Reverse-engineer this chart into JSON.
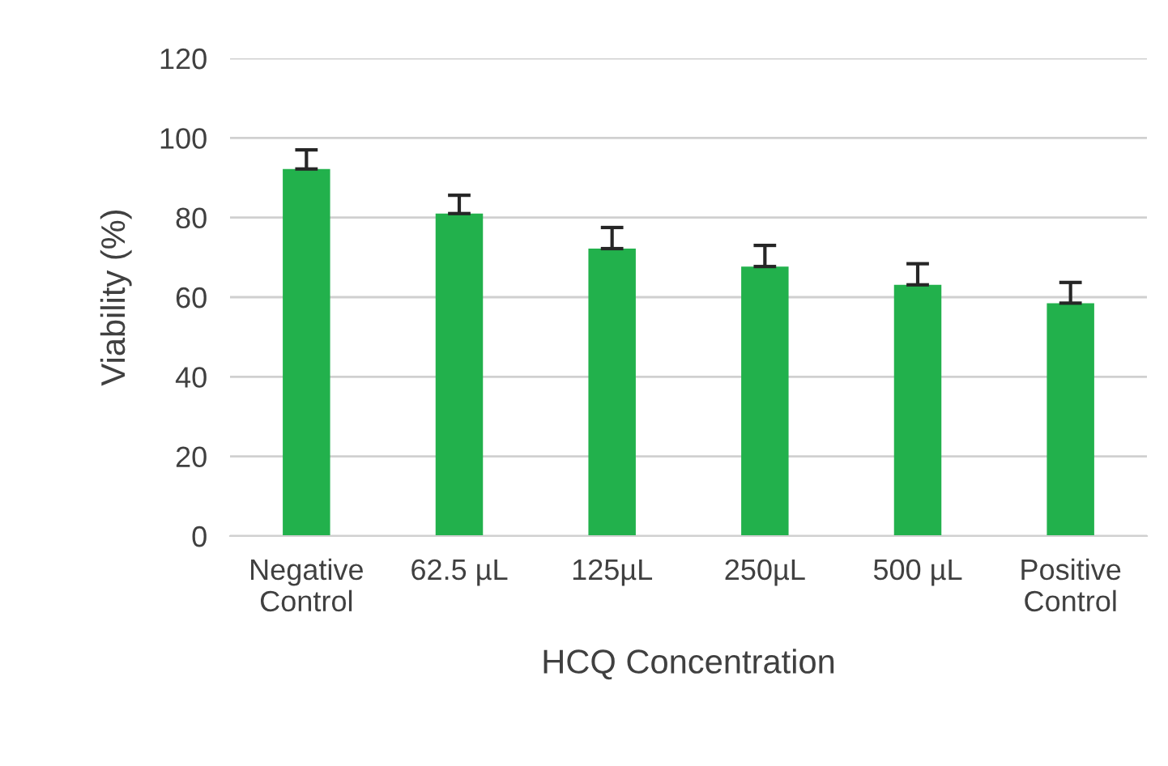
{
  "chart_data": {
    "type": "bar",
    "xlabel": "HCQ Concentration",
    "ylabel": "Viability (%)",
    "categories": [
      "Negative\nControl",
      "62.5 µL",
      "125µL",
      "250µL",
      "500 µL",
      "Positive\nControl"
    ],
    "values": [
      92.2,
      81.0,
      72.2,
      67.7,
      63.1,
      58.5
    ],
    "errors": [
      [
        92.2,
        97.0
      ],
      [
        81.0,
        85.6
      ],
      [
        72.2,
        77.5
      ],
      [
        67.7,
        73.0
      ],
      [
        63.1,
        68.4
      ],
      [
        58.5,
        63.7
      ]
    ],
    "color": "#22b14c",
    "ylim": [
      0,
      120
    ],
    "yticks": [
      0,
      20,
      40,
      60,
      80,
      100,
      120
    ],
    "grid": "y"
  }
}
